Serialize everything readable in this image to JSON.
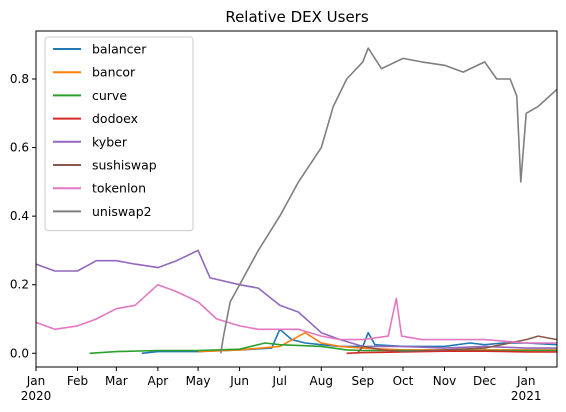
{
  "chart_data": {
    "type": "line",
    "title": "Relative DEX Users",
    "xlabel": "",
    "ylabel": "",
    "x_range": [
      "2020-01-01",
      "2021-01-24"
    ],
    "ylim": [
      -0.04,
      0.94
    ],
    "y_ticks": [
      0.0,
      0.2,
      0.4,
      0.6,
      0.8
    ],
    "y_tick_labels": [
      "0.0",
      "0.2",
      "0.4",
      "0.6",
      "0.8"
    ],
    "x_ticks": [
      {
        "date": "2020-01-01",
        "label": "Jan",
        "sub": "2020"
      },
      {
        "date": "2020-02-01",
        "label": "Feb",
        "sub": ""
      },
      {
        "date": "2020-03-01",
        "label": "Mar",
        "sub": ""
      },
      {
        "date": "2020-04-01",
        "label": "Apr",
        "sub": ""
      },
      {
        "date": "2020-05-01",
        "label": "May",
        "sub": ""
      },
      {
        "date": "2020-06-01",
        "label": "Jun",
        "sub": ""
      },
      {
        "date": "2020-07-01",
        "label": "Jul",
        "sub": ""
      },
      {
        "date": "2020-08-01",
        "label": "Aug",
        "sub": ""
      },
      {
        "date": "2020-09-01",
        "label": "Sep",
        "sub": ""
      },
      {
        "date": "2020-10-01",
        "label": "Oct",
        "sub": ""
      },
      {
        "date": "2020-11-01",
        "label": "Nov",
        "sub": ""
      },
      {
        "date": "2020-12-01",
        "label": "Dec",
        "sub": ""
      },
      {
        "date": "2021-01-01",
        "label": "Jan",
        "sub": "2021"
      }
    ],
    "legend_position": "top-left",
    "grid": false,
    "series": [
      {
        "name": "balancer",
        "color": "#1f77b4",
        "points": [
          [
            "2020-03-20",
            0.0
          ],
          [
            "2020-04-01",
            0.005
          ],
          [
            "2020-05-01",
            0.005
          ],
          [
            "2020-06-01",
            0.01
          ],
          [
            "2020-06-25",
            0.015
          ],
          [
            "2020-07-01",
            0.07
          ],
          [
            "2020-07-10",
            0.04
          ],
          [
            "2020-07-20",
            0.03
          ],
          [
            "2020-08-01",
            0.025
          ],
          [
            "2020-08-15",
            0.02
          ],
          [
            "2020-09-01",
            0.02
          ],
          [
            "2020-09-05",
            0.06
          ],
          [
            "2020-09-10",
            0.025
          ],
          [
            "2020-10-01",
            0.02
          ],
          [
            "2020-11-01",
            0.02
          ],
          [
            "2020-11-20",
            0.03
          ],
          [
            "2020-12-01",
            0.025
          ],
          [
            "2020-12-15",
            0.03
          ],
          [
            "2021-01-01",
            0.03
          ],
          [
            "2021-01-24",
            0.025
          ]
        ]
      },
      {
        "name": "bancor",
        "color": "#ff7f0e",
        "points": [
          [
            "2020-05-01",
            0.005
          ],
          [
            "2020-06-01",
            0.01
          ],
          [
            "2020-07-01",
            0.02
          ],
          [
            "2020-07-20",
            0.06
          ],
          [
            "2020-08-01",
            0.03
          ],
          [
            "2020-08-15",
            0.02
          ],
          [
            "2020-09-01",
            0.015
          ],
          [
            "2020-10-01",
            0.01
          ],
          [
            "2020-11-01",
            0.01
          ],
          [
            "2020-12-01",
            0.01
          ],
          [
            "2021-01-01",
            0.01
          ],
          [
            "2021-01-24",
            0.01
          ]
        ]
      },
      {
        "name": "curve",
        "color": "#2ca02c",
        "points": [
          [
            "2020-02-10",
            0.0
          ],
          [
            "2020-03-01",
            0.005
          ],
          [
            "2020-04-01",
            0.008
          ],
          [
            "2020-05-01",
            0.008
          ],
          [
            "2020-06-01",
            0.012
          ],
          [
            "2020-06-20",
            0.03
          ],
          [
            "2020-07-01",
            0.025
          ],
          [
            "2020-08-01",
            0.02
          ],
          [
            "2020-08-20",
            0.01
          ],
          [
            "2020-09-01",
            0.008
          ],
          [
            "2020-10-01",
            0.008
          ],
          [
            "2020-11-01",
            0.008
          ],
          [
            "2020-12-01",
            0.008
          ],
          [
            "2021-01-01",
            0.008
          ],
          [
            "2021-01-24",
            0.008
          ]
        ]
      },
      {
        "name": "dodoex",
        "color": "#d62728",
        "points": [
          [
            "2020-08-20",
            0.0
          ],
          [
            "2020-09-01",
            0.002
          ],
          [
            "2020-10-01",
            0.004
          ],
          [
            "2020-11-01",
            0.006
          ],
          [
            "2020-12-01",
            0.006
          ],
          [
            "2021-01-01",
            0.004
          ],
          [
            "2021-01-24",
            0.004
          ]
        ]
      },
      {
        "name": "kyber",
        "color": "#9467bd",
        "points": [
          [
            "2020-01-01",
            0.26
          ],
          [
            "2020-01-15",
            0.24
          ],
          [
            "2020-02-01",
            0.24
          ],
          [
            "2020-02-15",
            0.27
          ],
          [
            "2020-03-01",
            0.27
          ],
          [
            "2020-03-15",
            0.26
          ],
          [
            "2020-04-01",
            0.25
          ],
          [
            "2020-04-15",
            0.27
          ],
          [
            "2020-05-01",
            0.3
          ],
          [
            "2020-05-10",
            0.22
          ],
          [
            "2020-06-01",
            0.2
          ],
          [
            "2020-06-15",
            0.19
          ],
          [
            "2020-07-01",
            0.14
          ],
          [
            "2020-07-15",
            0.12
          ],
          [
            "2020-08-01",
            0.06
          ],
          [
            "2020-08-15",
            0.04
          ],
          [
            "2020-09-01",
            0.02
          ],
          [
            "2020-10-01",
            0.02
          ],
          [
            "2020-11-01",
            0.015
          ],
          [
            "2020-12-01",
            0.02
          ],
          [
            "2021-01-01",
            0.015
          ],
          [
            "2021-01-24",
            0.015
          ]
        ]
      },
      {
        "name": "sushiswap",
        "color": "#8c564b",
        "points": [
          [
            "2020-08-28",
            0.0
          ],
          [
            "2020-09-01",
            0.02
          ],
          [
            "2020-09-15",
            0.01
          ],
          [
            "2020-10-01",
            0.005
          ],
          [
            "2020-11-01",
            0.01
          ],
          [
            "2020-12-01",
            0.015
          ],
          [
            "2021-01-01",
            0.04
          ],
          [
            "2021-01-10",
            0.05
          ],
          [
            "2021-01-24",
            0.04
          ]
        ]
      },
      {
        "name": "tokenlon",
        "color": "#e377c2",
        "points": [
          [
            "2020-01-01",
            0.09
          ],
          [
            "2020-01-15",
            0.07
          ],
          [
            "2020-02-01",
            0.08
          ],
          [
            "2020-02-15",
            0.1
          ],
          [
            "2020-03-01",
            0.13
          ],
          [
            "2020-03-15",
            0.14
          ],
          [
            "2020-04-01",
            0.2
          ],
          [
            "2020-04-15",
            0.18
          ],
          [
            "2020-05-01",
            0.15
          ],
          [
            "2020-05-15",
            0.1
          ],
          [
            "2020-06-01",
            0.08
          ],
          [
            "2020-06-15",
            0.07
          ],
          [
            "2020-07-01",
            0.07
          ],
          [
            "2020-07-15",
            0.07
          ],
          [
            "2020-08-01",
            0.05
          ],
          [
            "2020-08-15",
            0.04
          ],
          [
            "2020-09-01",
            0.04
          ],
          [
            "2020-09-20",
            0.05
          ],
          [
            "2020-09-26",
            0.16
          ],
          [
            "2020-09-30",
            0.05
          ],
          [
            "2020-10-15",
            0.04
          ],
          [
            "2020-11-01",
            0.04
          ],
          [
            "2020-12-01",
            0.04
          ],
          [
            "2021-01-01",
            0.03
          ],
          [
            "2021-01-24",
            0.03
          ]
        ]
      },
      {
        "name": "uniswap2",
        "color": "#7f7f7f",
        "points": [
          [
            "2020-05-18",
            0.0
          ],
          [
            "2020-05-20",
            0.05
          ],
          [
            "2020-05-25",
            0.15
          ],
          [
            "2020-06-01",
            0.2
          ],
          [
            "2020-06-15",
            0.3
          ],
          [
            "2020-07-01",
            0.4
          ],
          [
            "2020-07-15",
            0.5
          ],
          [
            "2020-08-01",
            0.6
          ],
          [
            "2020-08-10",
            0.72
          ],
          [
            "2020-08-20",
            0.8
          ],
          [
            "2020-09-01",
            0.85
          ],
          [
            "2020-09-05",
            0.89
          ],
          [
            "2020-09-15",
            0.83
          ],
          [
            "2020-10-01",
            0.86
          ],
          [
            "2020-10-15",
            0.85
          ],
          [
            "2020-11-01",
            0.84
          ],
          [
            "2020-11-15",
            0.82
          ],
          [
            "2020-12-01",
            0.85
          ],
          [
            "2020-12-10",
            0.8
          ],
          [
            "2020-12-20",
            0.8
          ],
          [
            "2020-12-25",
            0.75
          ],
          [
            "2020-12-28",
            0.5
          ],
          [
            "2021-01-01",
            0.7
          ],
          [
            "2021-01-10",
            0.72
          ],
          [
            "2021-01-24",
            0.77
          ]
        ]
      }
    ]
  }
}
